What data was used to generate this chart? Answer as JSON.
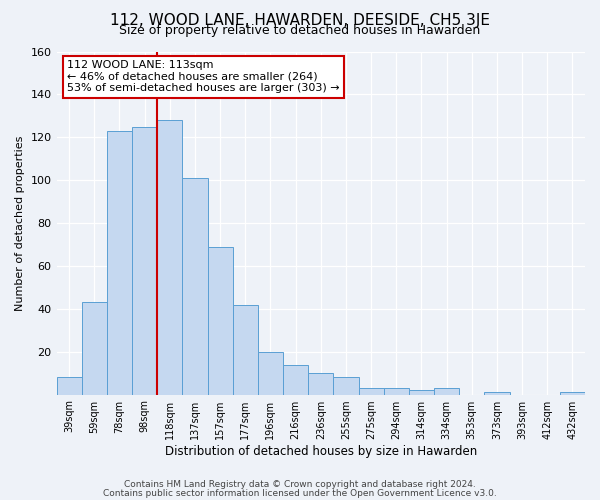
{
  "title": "112, WOOD LANE, HAWARDEN, DEESIDE, CH5 3JE",
  "subtitle": "Size of property relative to detached houses in Hawarden",
  "xlabel": "Distribution of detached houses by size in Hawarden",
  "ylabel": "Number of detached properties",
  "bar_labels": [
    "39sqm",
    "59sqm",
    "78sqm",
    "98sqm",
    "118sqm",
    "137sqm",
    "157sqm",
    "177sqm",
    "196sqm",
    "216sqm",
    "236sqm",
    "255sqm",
    "275sqm",
    "294sqm",
    "314sqm",
    "334sqm",
    "353sqm",
    "373sqm",
    "393sqm",
    "412sqm",
    "432sqm"
  ],
  "bar_heights": [
    8,
    43,
    123,
    125,
    128,
    101,
    69,
    42,
    20,
    14,
    10,
    8,
    3,
    3,
    2,
    3,
    0,
    1,
    0,
    0,
    1
  ],
  "bar_color": "#c5d8f0",
  "bar_edge_color": "#5a9fd4",
  "vline_color": "#cc0000",
  "annotation_title": "112 WOOD LANE: 113sqm",
  "annotation_line1": "← 46% of detached houses are smaller (264)",
  "annotation_line2": "53% of semi-detached houses are larger (303) →",
  "annotation_box_color": "#ffffff",
  "annotation_box_edge": "#cc0000",
  "ylim": [
    0,
    160
  ],
  "yticks": [
    0,
    20,
    40,
    60,
    80,
    100,
    120,
    140,
    160
  ],
  "footer1": "Contains HM Land Registry data © Crown copyright and database right 2024.",
  "footer2": "Contains public sector information licensed under the Open Government Licence v3.0.",
  "background_color": "#eef2f8",
  "title_fontsize": 11,
  "subtitle_fontsize": 9
}
